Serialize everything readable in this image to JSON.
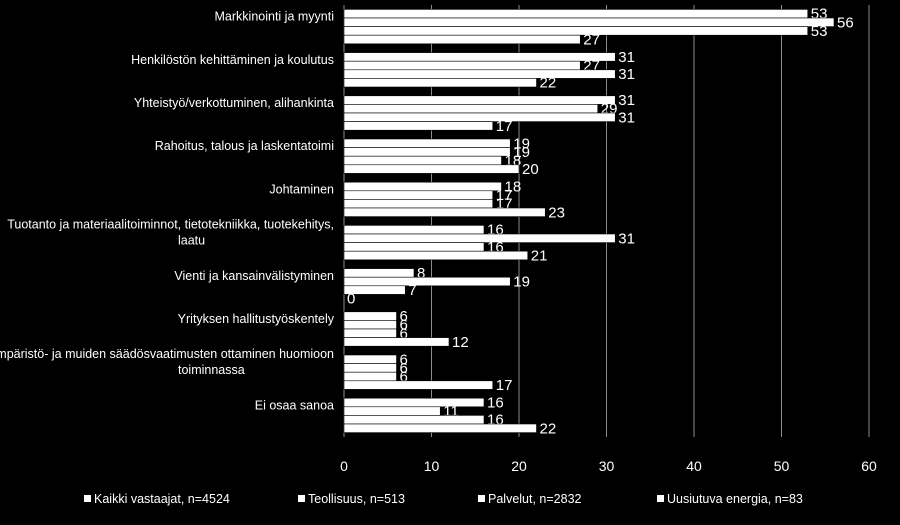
{
  "chart_data": {
    "type": "bar",
    "orientation": "horizontal",
    "categories": [
      [
        "Markkinointi ja myynti"
      ],
      [
        "Henkilöstön kehittäminen ja koulutus"
      ],
      [
        "Yhteistyö/verkottuminen, alihankinta"
      ],
      [
        "Rahoitus, talous ja laskentatoimi"
      ],
      [
        "Johtaminen"
      ],
      [
        "Tuotanto ja materiaalitoiminnot, tietotekniikka, tuotekehitys,",
        "laatu"
      ],
      [
        "Vienti ja kansainvälistyminen"
      ],
      [
        "Yrityksen hallitustyöskentely"
      ],
      [
        "Ympäristö- ja muiden säädösvaatimusten ottaminen huomioon",
        "toiminnassa"
      ],
      [
        "Ei osaa sanoa"
      ]
    ],
    "series": [
      {
        "name": "Kaikki vastaajat, n=4524",
        "values": [
          53,
          31,
          31,
          19,
          18,
          16,
          8,
          6,
          6,
          16
        ]
      },
      {
        "name": "Teollisuus, n=513",
        "values": [
          56,
          27,
          29,
          19,
          17,
          31,
          19,
          6,
          6,
          11
        ]
      },
      {
        "name": "Palvelut, n=2832",
        "values": [
          53,
          31,
          31,
          18,
          17,
          16,
          7,
          6,
          6,
          16
        ]
      },
      {
        "name": "Uusiutuva energia, n=83",
        "values": [
          27,
          22,
          17,
          20,
          23,
          21,
          0,
          12,
          17,
          22
        ]
      }
    ],
    "xlim": [
      0,
      60
    ],
    "xticks": [
      0,
      10,
      20,
      30,
      40,
      50,
      60
    ],
    "grid": true,
    "legend_position": "bottom",
    "colors": {
      "background": "#000000",
      "bar_fill": "#ffffff",
      "bar_stroke": "#000000",
      "gridline": "#8c8c8c",
      "text": "#ffffff"
    }
  }
}
